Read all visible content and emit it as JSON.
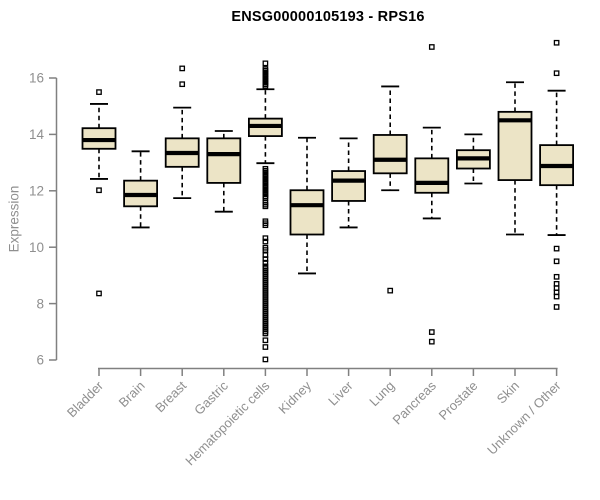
{
  "chart_data": {
    "type": "box",
    "title": "ENSG00000105193 - RPS16",
    "ylabel": "Expression",
    "xlabel": "",
    "ylim": [
      6,
      17.4
    ],
    "yticks": [
      6,
      8,
      10,
      12,
      14,
      16
    ],
    "grid": false,
    "legend": "none",
    "categories": [
      "Bladder",
      "Brain",
      "Breast",
      "Gastric",
      "Hematopoietic cells",
      "Kidney",
      "Liver",
      "Lung",
      "Pancreas",
      "Prostate",
      "Skin",
      "Unknown / Other"
    ],
    "series": [
      {
        "name": "Bladder",
        "whislo": 12.42,
        "q1": 13.49,
        "med": 13.8,
        "q3": 14.22,
        "whishi": 15.08,
        "outliers": [
          15.5,
          12.02,
          8.36
        ]
      },
      {
        "name": "Brain",
        "whislo": 10.7,
        "q1": 11.45,
        "med": 11.85,
        "q3": 12.36,
        "whishi": 13.4,
        "outliers": []
      },
      {
        "name": "Breast",
        "whislo": 11.74,
        "q1": 12.85,
        "med": 13.34,
        "q3": 13.86,
        "whishi": 14.95,
        "outliers": [
          16.34,
          15.78
        ]
      },
      {
        "name": "Gastric",
        "whislo": 11.26,
        "q1": 12.28,
        "med": 13.3,
        "q3": 13.86,
        "whishi": 14.12,
        "outliers": []
      },
      {
        "name": "Hematopoietic cells",
        "whislo": 12.98,
        "q1": 13.94,
        "med": 14.3,
        "q3": 14.56,
        "whishi": 15.6,
        "outliers": [
          16.52,
          16.32,
          16.26,
          16.2,
          16.14,
          16.08,
          16.02,
          15.96,
          15.9,
          15.84,
          15.78,
          15.72,
          12.78,
          12.71,
          12.65,
          12.58,
          12.52,
          12.45,
          12.39,
          12.32,
          12.26,
          12.19,
          12.13,
          12.06,
          12.0,
          11.93,
          11.87,
          11.8,
          11.74,
          11.58,
          11.51,
          11.45,
          10.92,
          10.85,
          10.78,
          10.32,
          10.2,
          9.98,
          9.9,
          9.72,
          9.58,
          9.45,
          9.32,
          9.25,
          9.18,
          9.11,
          9.04,
          8.97,
          8.9,
          8.83,
          8.76,
          8.69,
          8.62,
          8.55,
          8.48,
          8.41,
          8.34,
          8.27,
          8.2,
          8.13,
          8.06,
          7.99,
          7.92,
          7.85,
          7.78,
          7.71,
          7.64,
          7.57,
          7.5,
          7.43,
          7.36,
          7.29,
          7.22,
          7.15,
          7.08,
          7.01,
          6.94,
          6.7,
          6.46,
          6.02
        ]
      },
      {
        "name": "Kidney",
        "whislo": 9.07,
        "q1": 10.45,
        "med": 11.49,
        "q3": 12.02,
        "whishi": 13.88,
        "outliers": []
      },
      {
        "name": "Liver",
        "whislo": 10.7,
        "q1": 11.64,
        "med": 12.36,
        "q3": 12.7,
        "whishi": 13.86,
        "outliers": []
      },
      {
        "name": "Lung",
        "whislo": 12.02,
        "q1": 12.62,
        "med": 13.1,
        "q3": 13.98,
        "whishi": 15.7,
        "outliers": [
          8.46
        ]
      },
      {
        "name": "Pancreas",
        "whislo": 11.02,
        "q1": 11.93,
        "med": 12.28,
        "q3": 13.15,
        "whishi": 14.24,
        "outliers": [
          17.1,
          6.99,
          6.65
        ]
      },
      {
        "name": "Prostate",
        "whislo": 12.26,
        "q1": 12.79,
        "med": 13.15,
        "q3": 13.44,
        "whishi": 14.0,
        "outliers": []
      },
      {
        "name": "Skin",
        "whislo": 10.45,
        "q1": 12.38,
        "med": 14.5,
        "q3": 14.8,
        "whishi": 15.85,
        "outliers": []
      },
      {
        "name": "Unknown / Other",
        "whislo": 10.43,
        "q1": 12.2,
        "med": 12.88,
        "q3": 13.62,
        "whishi": 15.55,
        "outliers": [
          17.25,
          16.17,
          9.95,
          9.5,
          8.95,
          8.7,
          8.55,
          8.4,
          8.25,
          7.88
        ]
      }
    ],
    "colors": {
      "box_fill": "#ece4c6",
      "box_border": "#000000",
      "median": "#000000",
      "whisker": "#000000",
      "outlier": "#000000",
      "axis": "#808080",
      "tick_text": "#8f8f8f",
      "title_text": "#000000"
    }
  }
}
